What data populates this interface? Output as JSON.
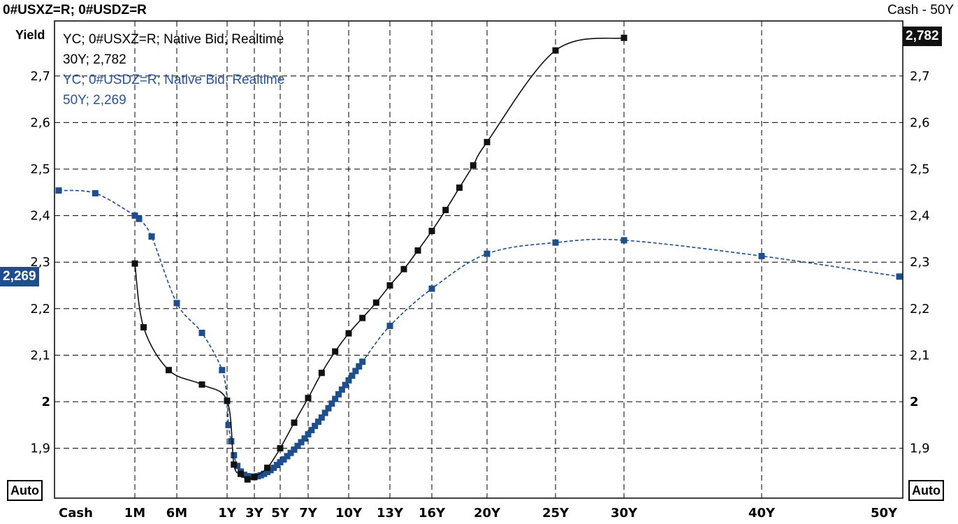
{
  "header": {
    "title": "0#USXZ=R; 0#USDZ=R",
    "range": "Cash - 50Y"
  },
  "y_axis_label": "Yield",
  "auto_left": "Auto",
  "auto_right": "Auto",
  "badges": {
    "left": {
      "text": "2,269",
      "color": "#1f4e8c"
    },
    "right": {
      "text": "2,782",
      "color": "#111111"
    }
  },
  "legend": {
    "series1_line1": "YC; 0#USXZ=R; Native Bid; Realtime",
    "series1_line2": "30Y; 2,782",
    "series2_line1": "YC; 0#USDZ=R; Native Bid; Realtime",
    "series2_line2": "50Y; 2,269"
  },
  "chart_data": {
    "type": "line",
    "title": "0#USXZ=R; 0#USDZ=R",
    "ylabel": "Yield",
    "xlabel": "",
    "ylim": [
      1.81,
      2.81
    ],
    "y_ticks": [
      {
        "value": 2.7,
        "label": "2,7"
      },
      {
        "value": 2.6,
        "label": "2,6"
      },
      {
        "value": 2.5,
        "label": "2,5"
      },
      {
        "value": 2.4,
        "label": "2,4"
      },
      {
        "value": 2.3,
        "label": "2,3"
      },
      {
        "value": 2.2,
        "label": "2,2"
      },
      {
        "value": 2.1,
        "label": "2,1"
      },
      {
        "value": 2.0,
        "label": "2"
      },
      {
        "value": 1.9,
        "label": "1,9"
      }
    ],
    "x_ticks": [
      {
        "label": "Cash",
        "x": 0
      },
      {
        "label": "1M",
        "x": 0.0833
      },
      {
        "label": "6M",
        "x": 0.5
      },
      {
        "label": "1Y",
        "x": 1
      },
      {
        "label": "3Y",
        "x": 3
      },
      {
        "label": "5Y",
        "x": 5
      },
      {
        "label": "7Y",
        "x": 7
      },
      {
        "label": "10Y",
        "x": 10
      },
      {
        "label": "13Y",
        "x": 13
      },
      {
        "label": "16Y",
        "x": 16
      },
      {
        "label": "20Y",
        "x": 20
      },
      {
        "label": "25Y",
        "x": 25
      },
      {
        "label": "30Y",
        "x": 30
      },
      {
        "label": "40Y",
        "x": 40
      },
      {
        "label": "50Y",
        "x": 50
      }
    ],
    "grid": true,
    "legend_position": "top-left",
    "series": [
      {
        "name": "YC; 0#USXZ=R; Native Bid; Realtime",
        "color": "#111111",
        "style": "solid",
        "points": [
          [
            0.0833,
            2.297
          ],
          [
            0.17,
            2.16
          ],
          [
            0.42,
            2.068
          ],
          [
            0.75,
            2.037
          ],
          [
            1.0,
            2.002
          ],
          [
            1.5,
            1.865
          ],
          [
            2.0,
            1.845
          ],
          [
            2.5,
            1.833
          ],
          [
            3.0,
            1.838
          ],
          [
            4.0,
            1.858
          ],
          [
            5.0,
            1.9
          ],
          [
            6.0,
            1.955
          ],
          [
            7.0,
            2.008
          ],
          [
            8.0,
            2.062
          ],
          [
            9.0,
            2.108
          ],
          [
            10.0,
            2.147
          ],
          [
            11.0,
            2.18
          ],
          [
            12.0,
            2.213
          ],
          [
            13.0,
            2.25
          ],
          [
            14.0,
            2.285
          ],
          [
            15.0,
            2.325
          ],
          [
            16.0,
            2.367
          ],
          [
            17.0,
            2.412
          ],
          [
            18.0,
            2.46
          ],
          [
            19.0,
            2.508
          ],
          [
            20.0,
            2.558
          ],
          [
            25.0,
            2.755
          ],
          [
            30.0,
            2.782
          ]
        ]
      },
      {
        "name": "YC; 0#USDZ=R; Native Bid; Realtime",
        "color": "#1f4e8c",
        "style": "dashed",
        "points": [
          [
            0.0,
            2.454
          ],
          [
            0.04,
            2.448
          ],
          [
            0.0833,
            2.4
          ],
          [
            0.125,
            2.393
          ],
          [
            0.25,
            2.355
          ],
          [
            0.5,
            2.212
          ],
          [
            0.75,
            2.148
          ],
          [
            0.95,
            2.068
          ],
          [
            1.0,
            2.002
          ],
          [
            1.1,
            1.95
          ],
          [
            1.3,
            1.915
          ],
          [
            1.5,
            1.885
          ],
          [
            1.75,
            1.862
          ],
          [
            2.0,
            1.85
          ],
          [
            2.25,
            1.843
          ],
          [
            2.5,
            1.84
          ],
          [
            2.75,
            1.839
          ],
          [
            3.0,
            1.839
          ],
          [
            3.25,
            1.84
          ],
          [
            3.5,
            1.842
          ],
          [
            3.75,
            1.845
          ],
          [
            4.0,
            1.849
          ],
          [
            4.25,
            1.853
          ],
          [
            4.5,
            1.858
          ],
          [
            4.75,
            1.864
          ],
          [
            5.0,
            1.87
          ],
          [
            5.25,
            1.876
          ],
          [
            5.5,
            1.883
          ],
          [
            5.75,
            1.89
          ],
          [
            6.0,
            1.897
          ],
          [
            6.25,
            1.905
          ],
          [
            6.5,
            1.913
          ],
          [
            6.75,
            1.921
          ],
          [
            7.0,
            1.93
          ],
          [
            7.25,
            1.939
          ],
          [
            7.5,
            1.948
          ],
          [
            7.75,
            1.957
          ],
          [
            8.0,
            1.966
          ],
          [
            8.25,
            1.976
          ],
          [
            8.5,
            1.986
          ],
          [
            8.75,
            1.996
          ],
          [
            9.0,
            2.006
          ],
          [
            9.25,
            2.016
          ],
          [
            9.5,
            2.026
          ],
          [
            9.75,
            2.036
          ],
          [
            10.0,
            2.046
          ],
          [
            10.25,
            2.056
          ],
          [
            10.5,
            2.066
          ],
          [
            10.75,
            2.076
          ],
          [
            11.0,
            2.086
          ],
          [
            13.0,
            2.163
          ],
          [
            16.0,
            2.243
          ],
          [
            20.0,
            2.318
          ],
          [
            25.0,
            2.342
          ],
          [
            30.0,
            2.347
          ],
          [
            40.0,
            2.313
          ],
          [
            50.0,
            2.269
          ]
        ]
      }
    ]
  }
}
